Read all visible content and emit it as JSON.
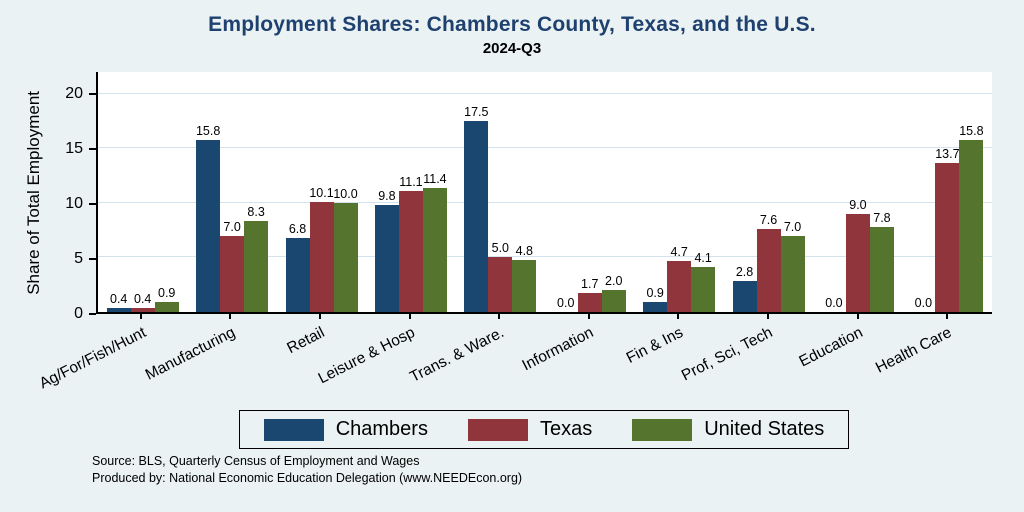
{
  "title": "Employment Shares: Chambers County, Texas, and the U.S.",
  "subtitle": "2024-Q3",
  "source_line1": "Source: BLS, Quarterly Census of Employment and Wages",
  "source_line2": "Produced by: National Economic Education Delegation (www.NEEDEcon.org)",
  "colors": {
    "page_background": "#eaf2f3",
    "plot_background": "#ffffff",
    "title": "#1f4170",
    "grid": "#d3e3ed",
    "chambers": "#1a476f",
    "texas": "#90353b",
    "united_states": "#55752f"
  },
  "chart_data": {
    "type": "bar",
    "title": "Employment Shares: Chambers County, Texas, and the U.S.",
    "subtitle": "2024-Q3",
    "xlabel": "",
    "ylabel": "Share of Total Employment",
    "ylim": [
      0,
      20
    ],
    "yticks": [
      0,
      5,
      10,
      15,
      20
    ],
    "grid": true,
    "legend_position": "bottom",
    "categories": [
      "Ag/For/Fish/Hunt",
      "Manufacturing",
      "Retail",
      "Leisure & Hosp",
      "Trans. & Ware.",
      "Information",
      "Fin & Ins",
      "Prof, Sci, Tech",
      "Education",
      "Health Care"
    ],
    "series": [
      {
        "name": "Chambers",
        "color": "#1a476f",
        "values": [
          0.4,
          15.8,
          6.8,
          9.8,
          17.5,
          0.0,
          0.9,
          2.8,
          0.0,
          0.0
        ]
      },
      {
        "name": "Texas",
        "color": "#90353b",
        "values": [
          0.4,
          7.0,
          10.1,
          11.1,
          5.0,
          1.7,
          4.7,
          7.6,
          9.0,
          13.7
        ]
      },
      {
        "name": "United States",
        "color": "#55752f",
        "values": [
          0.9,
          8.3,
          10.0,
          11.4,
          4.8,
          2.0,
          4.1,
          7.0,
          7.8,
          15.8
        ]
      }
    ]
  }
}
